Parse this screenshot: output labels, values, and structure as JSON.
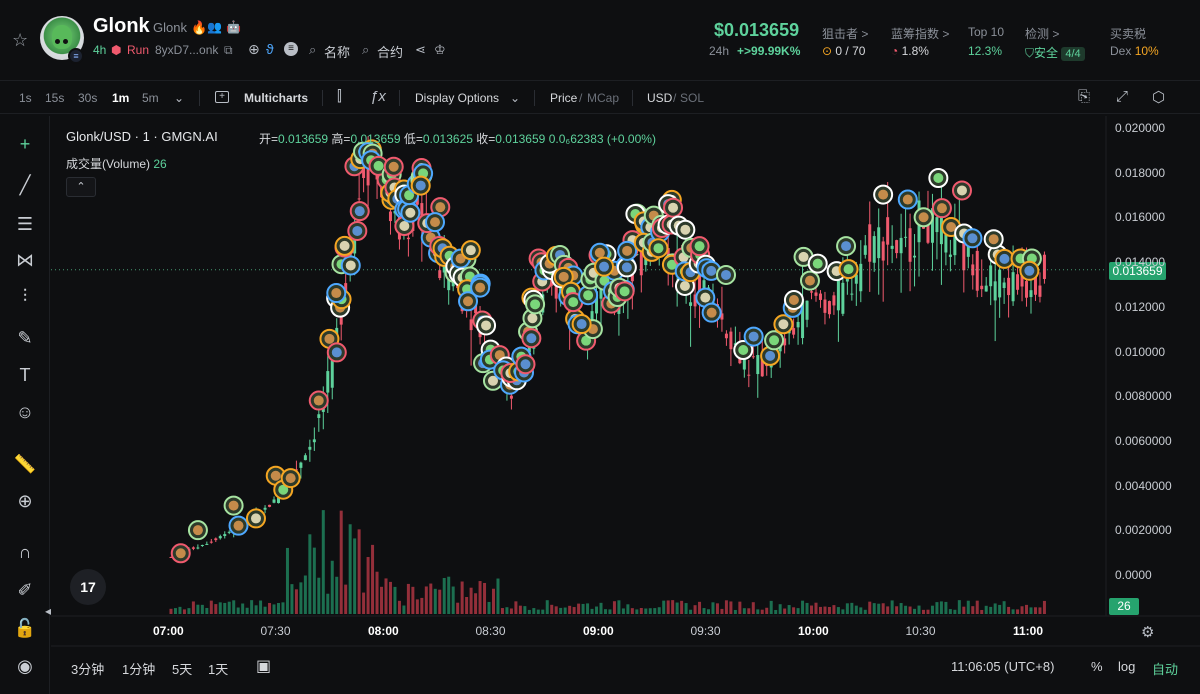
{
  "header": {
    "token_name": "Glonk",
    "token_sub": "Glonk",
    "age": "4h",
    "run_label": "Run",
    "address": "8yxD7...onk",
    "link_name": "名称",
    "link_contract": "合约",
    "price": "$0.013659",
    "change_label": "24h",
    "change_value": "+>99.99K%",
    "stats": [
      {
        "label": "狙击者 >",
        "value": "0 / 70"
      },
      {
        "label": "蓝筹指数 >",
        "value": "1.8%"
      },
      {
        "label": "Top 10",
        "value": "12.3%"
      },
      {
        "label": "检测 >",
        "value": "安全",
        "badge": "4/4"
      },
      {
        "label": "买卖税",
        "value_prefix": "Dex",
        "value": "10%"
      }
    ]
  },
  "toolbar": {
    "timeframes": [
      "1s",
      "15s",
      "30s",
      "1m",
      "5m"
    ],
    "active_timeframe": "1m",
    "multicharts": "Multicharts",
    "display_options": "Display Options",
    "price_label": "Price",
    "mcap_label": "MCap",
    "usd_label": "USD",
    "sol_label": "SOL"
  },
  "chart": {
    "legend_title": "Glonk/USD · 1 · GMGN.AI",
    "open_label": "开=",
    "open": "0.013659",
    "high_label": "高=",
    "high": "0.013659",
    "low_label": "低=",
    "low": "0.013625",
    "close_label": "收=",
    "close": "0.013659",
    "change": "0.0₆62383 (+0.00%)",
    "volume_label": "成交量(Volume)",
    "volume_value": "26",
    "current_price_tag": "0.013659",
    "volume_tag": "26",
    "tv_logo": "17"
  },
  "chart_data": {
    "type": "candlestick",
    "title": "Glonk/USD · 1 · GMGN.AI",
    "y_ticks": [
      "0.020000",
      "0.018000",
      "0.016000",
      "0.014000",
      "0.012000",
      "0.010000",
      "0.0080000",
      "0.0060000",
      "0.0040000",
      "0.0020000",
      "0.0000"
    ],
    "ylim": [
      0,
      0.02
    ],
    "x_ticks": [
      "07:00",
      "07:30",
      "08:00",
      "08:30",
      "09:00",
      "09:30",
      "10:00",
      "10:30",
      "11:00"
    ],
    "bold_x_ticks": [
      "07:00",
      "08:00",
      "09:00",
      "10:00",
      "11:00"
    ],
    "last_price": 0.013659,
    "series": [
      {
        "name": "price",
        "values": [
          [
            "07:00",
            0.0008
          ],
          [
            "07:05",
            0.0011
          ],
          [
            "07:10",
            0.0014
          ],
          [
            "07:15",
            0.0018
          ],
          [
            "07:20",
            0.0022
          ],
          [
            "07:25",
            0.0027
          ],
          [
            "07:30",
            0.0034
          ],
          [
            "07:35",
            0.0046
          ],
          [
            "07:40",
            0.006
          ],
          [
            "07:45",
            0.0088
          ],
          [
            "07:50",
            0.014
          ],
          [
            "07:55",
            0.019
          ],
          [
            "08:00",
            0.017
          ],
          [
            "08:05",
            0.015
          ],
          [
            "08:10",
            0.0165
          ],
          [
            "08:15",
            0.014
          ],
          [
            "08:20",
            0.013
          ],
          [
            "08:25",
            0.0118
          ],
          [
            "08:30",
            0.01
          ],
          [
            "08:35",
            0.0078
          ],
          [
            "08:40",
            0.01
          ],
          [
            "08:45",
            0.0125
          ],
          [
            "08:50",
            0.013
          ],
          [
            "08:55",
            0.0112
          ],
          [
            "09:00",
            0.0128
          ],
          [
            "09:05",
            0.012
          ],
          [
            "09:10",
            0.0138
          ],
          [
            "09:15",
            0.015
          ],
          [
            "09:20",
            0.0142
          ],
          [
            "09:25",
            0.0132
          ],
          [
            "09:30",
            0.0128
          ],
          [
            "09:35",
            0.0112
          ],
          [
            "09:40",
            0.0096
          ],
          [
            "09:45",
            0.0092
          ],
          [
            "09:50",
            0.01
          ],
          [
            "09:55",
            0.0112
          ],
          [
            "10:00",
            0.0125
          ],
          [
            "10:05",
            0.012
          ],
          [
            "10:10",
            0.013
          ],
          [
            "10:15",
            0.0148
          ],
          [
            "10:20",
            0.0152
          ],
          [
            "10:25",
            0.0142
          ],
          [
            "10:30",
            0.016
          ],
          [
            "10:35",
            0.015
          ],
          [
            "10:40",
            0.0145
          ],
          [
            "10:45",
            0.0138
          ],
          [
            "10:50",
            0.0132
          ],
          [
            "10:55",
            0.013
          ],
          [
            "11:00",
            0.0132
          ],
          [
            "11:05",
            0.013659
          ]
        ]
      }
    ]
  },
  "left_tools": [
    {
      "name": "crosshair-icon",
      "glyph": "+"
    },
    {
      "name": "trendline-icon",
      "glyph": "╱"
    },
    {
      "name": "fib-icon",
      "glyph": "☰"
    },
    {
      "name": "pattern-icon",
      "glyph": "⋈"
    },
    {
      "name": "prediction-icon",
      "glyph": "⫶"
    },
    {
      "name": "brush-icon",
      "glyph": "✎"
    },
    {
      "name": "text-icon",
      "glyph": "T"
    },
    {
      "name": "emoji-icon",
      "glyph": "☺"
    },
    {
      "name": "ruler-icon",
      "glyph": "📏"
    },
    {
      "name": "zoom-icon",
      "glyph": "⊕"
    },
    {
      "name": "magnet-icon",
      "glyph": "∩"
    },
    {
      "name": "lock-drawings-icon",
      "glyph": "✐"
    },
    {
      "name": "lock-icon",
      "glyph": "🔓"
    },
    {
      "name": "eye-icon",
      "glyph": "◉"
    }
  ],
  "bottom": {
    "ranges": [
      "3分钟",
      "1分钟",
      "5天",
      "1天"
    ],
    "time": "11:06:05 (UTC+8)",
    "percent": "%",
    "log": "log",
    "auto": "自动"
  }
}
